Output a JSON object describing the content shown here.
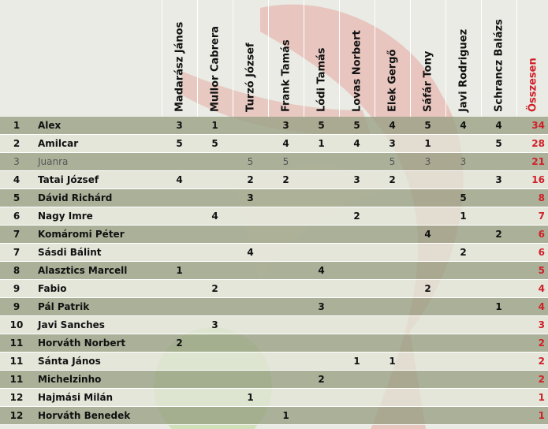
{
  "header": {
    "judges": [
      "Madarász János",
      "Mullor Cabrera",
      "Turzó József",
      "Frank Tamás",
      "Lódi Tamás",
      "Lovas Norbert",
      "Elek Gergő",
      "Sáfár Tony",
      "Javi Rodriguez",
      "Schrancz Balázs"
    ],
    "total": "Összesen"
  },
  "rows": [
    {
      "rank": 1,
      "name": "Alex",
      "scores": [
        3,
        1,
        null,
        3,
        5,
        5,
        4,
        5,
        4,
        4
      ],
      "total": 34
    },
    {
      "rank": 2,
      "name": "Amilcar",
      "scores": [
        5,
        5,
        null,
        4,
        1,
        4,
        3,
        1,
        null,
        5
      ],
      "total": 28
    },
    {
      "rank": 3,
      "name": "Juanra",
      "scores": [
        null,
        null,
        5,
        5,
        null,
        null,
        5,
        3,
        3,
        null
      ],
      "total": 21
    },
    {
      "rank": 4,
      "name": "Tatai József",
      "scores": [
        4,
        null,
        2,
        2,
        null,
        3,
        2,
        null,
        null,
        3
      ],
      "total": 16
    },
    {
      "rank": 5,
      "name": "Dávid Richárd",
      "scores": [
        null,
        null,
        3,
        null,
        null,
        null,
        null,
        null,
        5,
        null
      ],
      "total": 8
    },
    {
      "rank": 6,
      "name": "Nagy Imre",
      "scores": [
        null,
        4,
        null,
        null,
        null,
        2,
        null,
        null,
        1,
        null
      ],
      "total": 7
    },
    {
      "rank": 7,
      "name": "Komáromi Péter",
      "scores": [
        null,
        null,
        null,
        null,
        null,
        null,
        null,
        4,
        null,
        2
      ],
      "total": 6
    },
    {
      "rank": 7,
      "name": "Sásdi Bálint",
      "scores": [
        null,
        null,
        4,
        null,
        null,
        null,
        null,
        null,
        2,
        null
      ],
      "total": 6
    },
    {
      "rank": 8,
      "name": "Alasztics Marcell",
      "scores": [
        1,
        null,
        null,
        null,
        4,
        null,
        null,
        null,
        null,
        null
      ],
      "total": 5
    },
    {
      "rank": 9,
      "name": "Fabio",
      "scores": [
        null,
        2,
        null,
        null,
        null,
        null,
        null,
        2,
        null,
        null
      ],
      "total": 4
    },
    {
      "rank": 9,
      "name": "Pál Patrik",
      "scores": [
        null,
        null,
        null,
        null,
        3,
        null,
        null,
        null,
        null,
        1
      ],
      "total": 4
    },
    {
      "rank": 10,
      "name": "Javi Sanches",
      "scores": [
        null,
        3,
        null,
        null,
        null,
        null,
        null,
        null,
        null,
        null
      ],
      "total": 3
    },
    {
      "rank": 11,
      "name": "Horváth Norbert",
      "scores": [
        2,
        null,
        null,
        null,
        null,
        null,
        null,
        null,
        null,
        null
      ],
      "total": 2
    },
    {
      "rank": 11,
      "name": "Sánta János",
      "scores": [
        null,
        null,
        null,
        null,
        null,
        1,
        1,
        null,
        null,
        null
      ],
      "total": 2
    },
    {
      "rank": 11,
      "name": "Michelzinho",
      "scores": [
        null,
        null,
        null,
        null,
        2,
        null,
        null,
        null,
        null,
        null
      ],
      "total": 2
    },
    {
      "rank": 12,
      "name": "Hajmási Milán",
      "scores": [
        null,
        null,
        1,
        null,
        null,
        null,
        null,
        null,
        null,
        null
      ],
      "total": 1
    },
    {
      "rank": 12,
      "name": "Horváth Benedek",
      "scores": [
        null,
        null,
        null,
        1,
        null,
        null,
        null,
        null,
        null,
        null
      ],
      "total": 1
    }
  ]
}
